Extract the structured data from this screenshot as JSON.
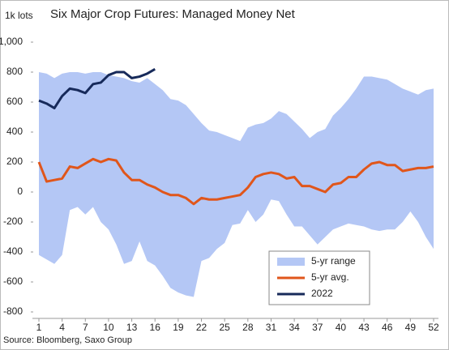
{
  "chart_data": {
    "type": "line",
    "title": "Six Major Crop Futures: Managed Money Net",
    "y_label": "1k lots",
    "source": "Source: Bloomberg, Saxo Group",
    "x": [
      1,
      2,
      3,
      4,
      5,
      6,
      7,
      8,
      9,
      10,
      11,
      12,
      13,
      14,
      15,
      16,
      17,
      18,
      19,
      20,
      21,
      22,
      23,
      24,
      25,
      26,
      27,
      28,
      29,
      30,
      31,
      32,
      33,
      34,
      35,
      36,
      37,
      38,
      39,
      40,
      41,
      42,
      43,
      44,
      45,
      46,
      47,
      48,
      49,
      50,
      51,
      52
    ],
    "xlim": [
      1,
      52
    ],
    "xticks": [
      1,
      4,
      7,
      10,
      13,
      16,
      19,
      22,
      25,
      28,
      31,
      34,
      37,
      40,
      43,
      46,
      49,
      52
    ],
    "ylim": [
      -800,
      1000
    ],
    "yticks": [
      -800,
      -600,
      -400,
      -200,
      0,
      200,
      400,
      600,
      800,
      {
        "value": 1000,
        "label": "1,000"
      }
    ],
    "legend": "lower-right",
    "series": [
      {
        "name": "5-yr range",
        "type": "band",
        "color": "#b4c7f5",
        "upper": [
          800,
          790,
          760,
          790,
          800,
          800,
          790,
          800,
          800,
          780,
          770,
          760,
          740,
          730,
          760,
          720,
          680,
          620,
          610,
          580,
          520,
          460,
          410,
          400,
          380,
          360,
          340,
          430,
          450,
          460,
          490,
          540,
          520,
          470,
          420,
          360,
          400,
          420,
          510,
          560,
          620,
          690,
          770,
          770,
          760,
          750,
          720,
          690,
          670,
          650,
          680,
          690
        ],
        "lower": [
          -420,
          -450,
          -480,
          -420,
          -120,
          -100,
          -150,
          -100,
          -200,
          -250,
          -350,
          -480,
          -460,
          -330,
          -460,
          -490,
          -560,
          -640,
          -670,
          -690,
          -700,
          -460,
          -440,
          -380,
          -340,
          -220,
          -210,
          -120,
          -200,
          -150,
          -50,
          -60,
          -150,
          -230,
          -230,
          -290,
          -350,
          -300,
          -250,
          -230,
          -210,
          -220,
          -230,
          -250,
          -260,
          -250,
          -250,
          -200,
          -130,
          -200,
          -300,
          -380
        ]
      },
      {
        "name": "5-yr avg.",
        "type": "line",
        "color": "#e0561b",
        "values": [
          200,
          70,
          80,
          90,
          170,
          160,
          190,
          220,
          200,
          220,
          210,
          130,
          80,
          80,
          50,
          30,
          0,
          -20,
          -20,
          -40,
          -80,
          -40,
          -50,
          -50,
          -40,
          -30,
          -20,
          30,
          100,
          120,
          130,
          120,
          90,
          100,
          40,
          40,
          20,
          0,
          50,
          60,
          100,
          100,
          150,
          190,
          200,
          180,
          180,
          140,
          150,
          160,
          160,
          170
        ]
      },
      {
        "name": "2022",
        "type": "line",
        "color": "#172a5a",
        "values": [
          610,
          590,
          560,
          640,
          690,
          680,
          660,
          720,
          730,
          780,
          800,
          800,
          760,
          770,
          790,
          820,
          null,
          null,
          null,
          null,
          null,
          null,
          null,
          null,
          null,
          null,
          null,
          null,
          null,
          null,
          null,
          null,
          null,
          null,
          null,
          null,
          null,
          null,
          null,
          null,
          null,
          null,
          null,
          null,
          null,
          null,
          null,
          null,
          null,
          null,
          null,
          null
        ]
      }
    ]
  }
}
